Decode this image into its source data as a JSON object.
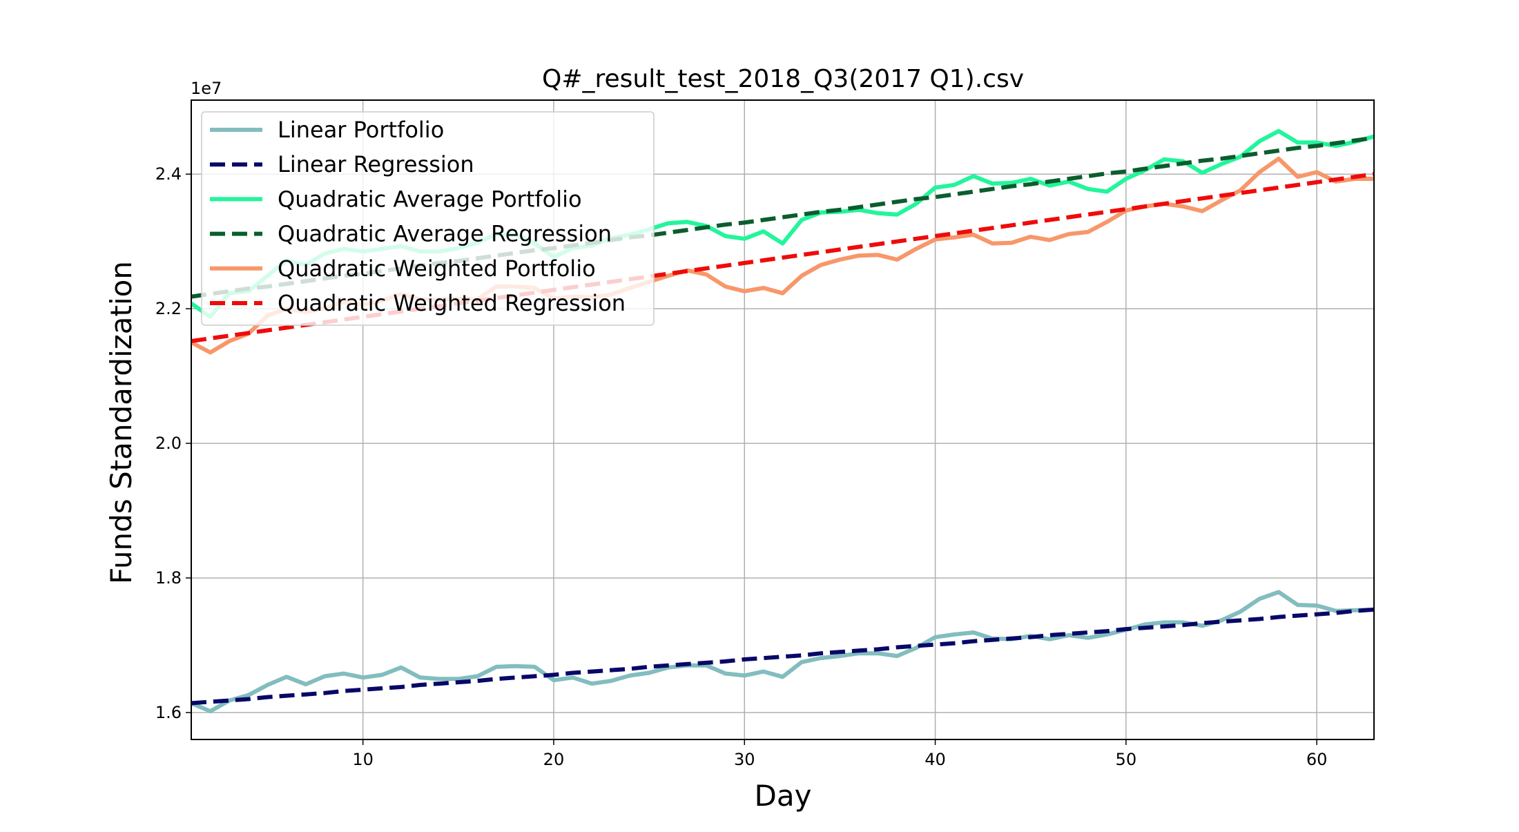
{
  "chart_data": {
    "type": "line",
    "title": "Q#_result_test_2018_Q3(2017 Q1).csv",
    "xlabel": "Day",
    "ylabel": "Funds Standardization",
    "offset_label": "1e7",
    "xlim": [
      1,
      63
    ],
    "ylim": [
      1.56,
      2.51
    ],
    "xticks": [
      10,
      20,
      30,
      40,
      50,
      60
    ],
    "yticks": [
      1.6,
      1.8,
      2.0,
      2.2,
      2.4
    ],
    "ytick_labels": [
      "1.6",
      "1.8",
      "2.0",
      "2.2",
      "2.4"
    ],
    "grid": true,
    "legend_position": "upper-left",
    "x": [
      1,
      2,
      3,
      4,
      5,
      6,
      7,
      8,
      9,
      10,
      11,
      12,
      13,
      14,
      15,
      16,
      17,
      18,
      19,
      20,
      21,
      22,
      23,
      24,
      25,
      26,
      27,
      28,
      29,
      30,
      31,
      32,
      33,
      34,
      35,
      36,
      37,
      38,
      39,
      40,
      41,
      42,
      43,
      44,
      45,
      46,
      47,
      48,
      49,
      50,
      51,
      52,
      53,
      54,
      55,
      56,
      57,
      58,
      59,
      60,
      61,
      62,
      63
    ],
    "series": [
      {
        "name": "Linear Portfolio",
        "color": "#82bdbf",
        "style": "solid",
        "values": [
          1.614,
          1.602,
          1.618,
          1.626,
          1.641,
          1.653,
          1.642,
          1.654,
          1.658,
          1.652,
          1.656,
          1.667,
          1.652,
          1.65,
          1.65,
          1.654,
          1.668,
          1.669,
          1.668,
          1.648,
          1.652,
          1.643,
          1.647,
          1.655,
          1.659,
          1.667,
          1.67,
          1.67,
          1.658,
          1.655,
          1.661,
          1.653,
          1.675,
          1.681,
          1.684,
          1.688,
          1.688,
          1.684,
          1.696,
          1.712,
          1.716,
          1.719,
          1.71,
          1.709,
          1.714,
          1.709,
          1.715,
          1.711,
          1.716,
          1.723,
          1.731,
          1.734,
          1.734,
          1.729,
          1.737,
          1.75,
          1.769,
          1.779,
          1.76,
          1.759,
          1.751,
          1.752,
          1.753
        ]
      },
      {
        "name": "Linear Regression",
        "color": "#080868",
        "style": "dashed",
        "values": [
          1.614,
          1.616,
          1.618,
          1.62,
          1.623,
          1.625,
          1.627,
          1.629,
          1.632,
          1.634,
          1.636,
          1.638,
          1.641,
          1.643,
          1.645,
          1.647,
          1.65,
          1.652,
          1.654,
          1.656,
          1.659,
          1.661,
          1.663,
          1.665,
          1.668,
          1.67,
          1.672,
          1.674,
          1.676,
          1.679,
          1.681,
          1.683,
          1.685,
          1.688,
          1.69,
          1.692,
          1.694,
          1.697,
          1.699,
          1.701,
          1.703,
          1.706,
          1.708,
          1.71,
          1.712,
          1.715,
          1.717,
          1.719,
          1.721,
          1.724,
          1.726,
          1.728,
          1.73,
          1.733,
          1.735,
          1.737,
          1.739,
          1.742,
          1.744,
          1.746,
          1.748,
          1.751,
          1.753
        ]
      },
      {
        "name": "Quadratic Average Portfolio",
        "color": "#22f59b",
        "style": "solid",
        "values": [
          2.208,
          2.188,
          2.223,
          2.226,
          2.249,
          2.272,
          2.265,
          2.282,
          2.289,
          2.285,
          2.289,
          2.293,
          2.285,
          2.285,
          2.29,
          2.298,
          2.311,
          2.31,
          2.297,
          2.277,
          2.29,
          2.294,
          2.305,
          2.31,
          2.318,
          2.327,
          2.329,
          2.323,
          2.308,
          2.304,
          2.315,
          2.297,
          2.332,
          2.343,
          2.344,
          2.347,
          2.342,
          2.34,
          2.356,
          2.38,
          2.384,
          2.397,
          2.386,
          2.387,
          2.393,
          2.383,
          2.389,
          2.378,
          2.374,
          2.393,
          2.406,
          2.422,
          2.419,
          2.402,
          2.415,
          2.426,
          2.449,
          2.464,
          2.447,
          2.447,
          2.442,
          2.448,
          2.456
        ]
      },
      {
        "name": "Quadratic Average Regression",
        "color": "#0b5d2d",
        "style": "dashed",
        "values": [
          2.218,
          2.222,
          2.226,
          2.23,
          2.233,
          2.237,
          2.241,
          2.245,
          2.249,
          2.252,
          2.256,
          2.26,
          2.264,
          2.268,
          2.271,
          2.275,
          2.279,
          2.283,
          2.287,
          2.29,
          2.294,
          2.298,
          2.302,
          2.306,
          2.309,
          2.313,
          2.317,
          2.321,
          2.325,
          2.328,
          2.332,
          2.336,
          2.34,
          2.344,
          2.347,
          2.351,
          2.355,
          2.359,
          2.363,
          2.366,
          2.37,
          2.374,
          2.378,
          2.382,
          2.385,
          2.389,
          2.393,
          2.397,
          2.401,
          2.404,
          2.408,
          2.412,
          2.416,
          2.42,
          2.423,
          2.427,
          2.431,
          2.435,
          2.439,
          2.442,
          2.446,
          2.45,
          2.454
        ]
      },
      {
        "name": "Quadratic Weighted Portfolio",
        "color": "#f7976a",
        "style": "solid",
        "values": [
          2.15,
          2.135,
          2.152,
          2.163,
          2.19,
          2.2,
          2.195,
          2.201,
          2.21,
          2.206,
          2.212,
          2.222,
          2.214,
          2.213,
          2.215,
          2.214,
          2.233,
          2.233,
          2.231,
          2.215,
          2.218,
          2.217,
          2.221,
          2.231,
          2.24,
          2.249,
          2.257,
          2.251,
          2.233,
          2.226,
          2.231,
          2.223,
          2.249,
          2.265,
          2.273,
          2.279,
          2.28,
          2.273,
          2.289,
          2.303,
          2.306,
          2.31,
          2.297,
          2.298,
          2.307,
          2.302,
          2.311,
          2.314,
          2.329,
          2.346,
          2.352,
          2.356,
          2.352,
          2.345,
          2.361,
          2.376,
          2.403,
          2.423,
          2.396,
          2.403,
          2.389,
          2.393,
          2.393
        ]
      },
      {
        "name": "Quadratic Weighted Regression",
        "color": "#ef0b0b",
        "style": "dashed",
        "values": [
          2.152,
          2.156,
          2.16,
          2.164,
          2.168,
          2.172,
          2.176,
          2.18,
          2.184,
          2.188,
          2.192,
          2.196,
          2.2,
          2.204,
          2.208,
          2.212,
          2.216,
          2.22,
          2.224,
          2.228,
          2.232,
          2.236,
          2.24,
          2.244,
          2.248,
          2.252,
          2.256,
          2.26,
          2.264,
          2.268,
          2.272,
          2.276,
          2.28,
          2.284,
          2.288,
          2.292,
          2.296,
          2.3,
          2.304,
          2.308,
          2.312,
          2.316,
          2.32,
          2.324,
          2.328,
          2.332,
          2.336,
          2.34,
          2.344,
          2.348,
          2.352,
          2.356,
          2.36,
          2.364,
          2.368,
          2.372,
          2.376,
          2.38,
          2.384,
          2.388,
          2.392,
          2.396,
          2.4
        ]
      }
    ]
  }
}
